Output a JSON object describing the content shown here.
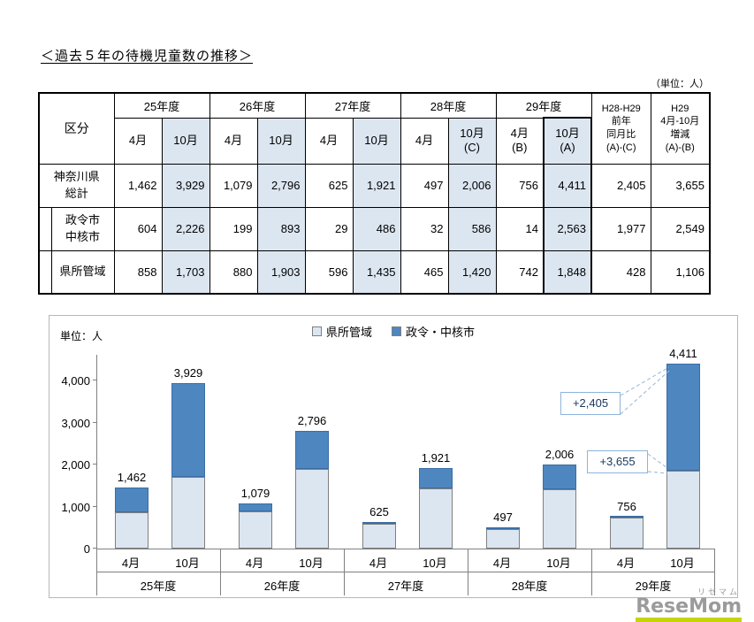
{
  "page": {
    "title": "＜過去５年の待機児童数の推移＞",
    "unit_note": "（単位：人）"
  },
  "table": {
    "corner_label": "区分",
    "years": [
      "25年度",
      "26年度",
      "27年度",
      "28年度",
      "29年度"
    ],
    "months": [
      "4月",
      "10月",
      "4月",
      "10月",
      "4月",
      "10月",
      "4月",
      "10月\n(C)",
      "4月\n(B)",
      "10月\n(A)"
    ],
    "diff_headers": [
      "H28-H29\n前年\n同月比\n(A)-(C)",
      "H29\n4月-10月\n増減\n(A)-(B)"
    ],
    "rows": [
      {
        "label": "神奈川県\n総計",
        "values": [
          "1,462",
          "3,929",
          "1,079",
          "2,796",
          "625",
          "1,921",
          "497",
          "2,006",
          "756",
          "4,411",
          "2,405",
          "3,655"
        ]
      },
      {
        "label": "政令市\n中核市",
        "values": [
          "604",
          "2,226",
          "199",
          "893",
          "29",
          "486",
          "32",
          "586",
          "14",
          "2,563",
          "1,977",
          "2,549"
        ]
      },
      {
        "label": "県所管域",
        "values": [
          "858",
          "1,703",
          "880",
          "1,903",
          "596",
          "1,435",
          "465",
          "1,420",
          "742",
          "1,848",
          "428",
          "1,106"
        ]
      }
    ]
  },
  "chart_data": {
    "type": "bar",
    "stacked": true,
    "unit_label": "単位：人",
    "legend_position": "top",
    "groups": [
      "25年度",
      "26年度",
      "27年度",
      "28年度",
      "29年度"
    ],
    "categories": [
      "4月",
      "10月",
      "4月",
      "10月",
      "4月",
      "10月",
      "4月",
      "10月",
      "4月",
      "10月"
    ],
    "series": [
      {
        "name": "県所管域",
        "color": "#dce6f1",
        "border": "#7f7f7f",
        "values": [
          858,
          1703,
          880,
          1903,
          596,
          1435,
          465,
          1420,
          742,
          1848
        ]
      },
      {
        "name": "政令・中核市",
        "color": "#4e86c0",
        "border": "#3a6ea5",
        "values": [
          604,
          2226,
          199,
          893,
          29,
          486,
          32,
          586,
          14,
          2563
        ]
      }
    ],
    "total_labels": [
      "1,462",
      "3,929",
      "1,079",
      "2,796",
      "625",
      "1,921",
      "497",
      "2,006",
      "756",
      "4,411"
    ],
    "yticks": [
      0,
      1000,
      2000,
      3000,
      4000
    ],
    "ytick_labels": [
      "0",
      "1,000",
      "2,000",
      "3,000",
      "4,000"
    ],
    "ymax_display": 4632,
    "annotations": [
      {
        "text": "+2,405"
      },
      {
        "text": "+3,655"
      }
    ]
  },
  "footer": {
    "logo": "ReseMom",
    "kana": "リセマム"
  }
}
